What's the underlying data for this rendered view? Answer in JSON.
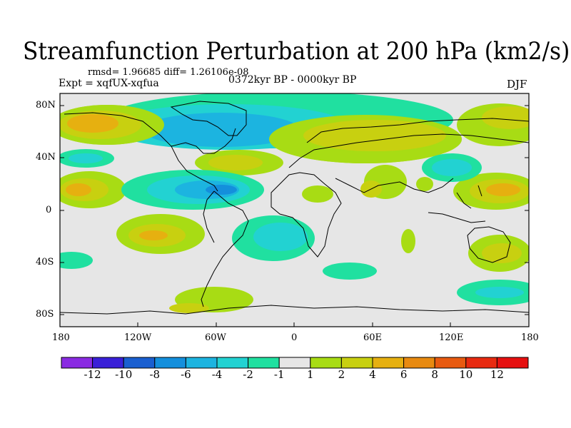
{
  "title": "Streamfunction Perturbation at 200 hPa (km2/s)",
  "stats": "rmsd= 1.96685 diff= 1.26106e-08",
  "experiment": "Expt = xqfUX-xqfua",
  "period": "0372kyr BP - 0000kyr BP",
  "season": "DJF",
  "lat_ticks": [
    "80N",
    "40N",
    "0",
    "40S",
    "80S"
  ],
  "lon_ticks": [
    "180",
    "120W",
    "60W",
    "0",
    "60E",
    "120E",
    "180"
  ],
  "colorbar": {
    "labels": [
      "-12",
      "-10",
      "-8",
      "-6",
      "-4",
      "-2",
      "-1",
      "1",
      "2",
      "4",
      "6",
      "8",
      "10",
      "12"
    ],
    "colors": [
      "#8a2be2",
      "#3a20d8",
      "#1a5fd0",
      "#148fdc",
      "#1cb4e0",
      "#22d2d2",
      "#20e0a0",
      "#e6e6e6",
      "#a8dc14",
      "#c8d010",
      "#e6b010",
      "#e88a10",
      "#e85a10",
      "#e82a10",
      "#e61010"
    ]
  },
  "icons": {
    "map": "world-coastline-map"
  }
}
